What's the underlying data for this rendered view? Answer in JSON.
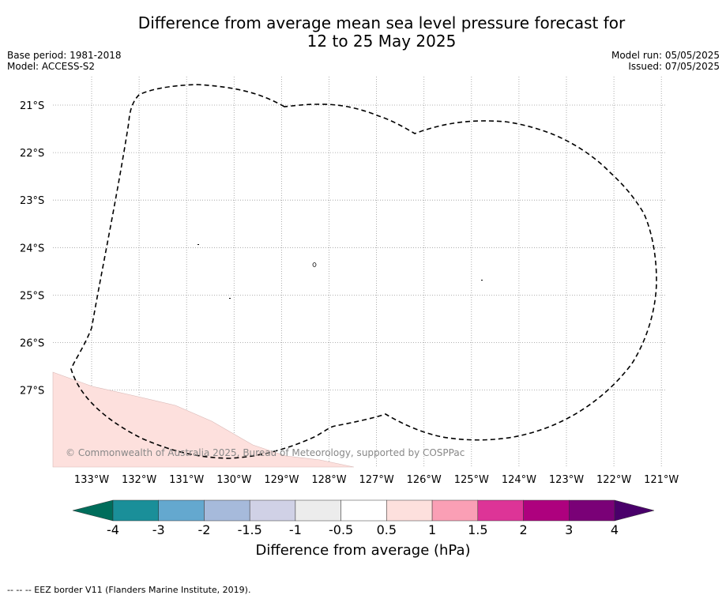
{
  "title": {
    "line1": "Difference from average mean sea level pressure forecast for",
    "line2": "12 to 25 May 2025"
  },
  "meta_left": {
    "base_period": "Base period: 1981-2018",
    "model": "Model: ACCESS-S2"
  },
  "meta_right": {
    "model_run": "Model run: 05/05/2025",
    "issued": "Issued: 07/05/2025"
  },
  "map": {
    "lon_labels": [
      "133°W",
      "132°W",
      "131°W",
      "130°W",
      "129°W",
      "128°W",
      "127°W",
      "126°W",
      "125°W",
      "124°W",
      "123°W",
      "122°W",
      "121°W"
    ],
    "lat_labels": [
      "21°S",
      "22°S",
      "23°S",
      "24°S",
      "25°S",
      "26°S",
      "27°S"
    ],
    "copyright": "© Commonwealth of Australia 2025, Bureau of Meteorology, supported by COSPPac",
    "anomaly_fill_color": "#fde0dd",
    "eez_line_color": "#000000"
  },
  "colorbar": {
    "ticks": [
      "-4",
      "-3",
      "-2",
      "-1.5",
      "-1",
      "-0.5",
      "0.5",
      "1",
      "1.5",
      "2",
      "3",
      "4"
    ],
    "colors": [
      "#1a8f99",
      "#64a8cf",
      "#a6badb",
      "#d0d1e6",
      "#ececec",
      "#ffffff",
      "#fde0dd",
      "#fa9fb5",
      "#dd3497",
      "#ae017e",
      "#7a0177"
    ],
    "extend_low_color": "#006d5b",
    "extend_high_color": "#49006a",
    "label": "Difference from average (hPa)"
  },
  "legend": {
    "eez_border": "--  --  -- EEZ border V11 (Flanders Marine Institute, 2019)."
  }
}
